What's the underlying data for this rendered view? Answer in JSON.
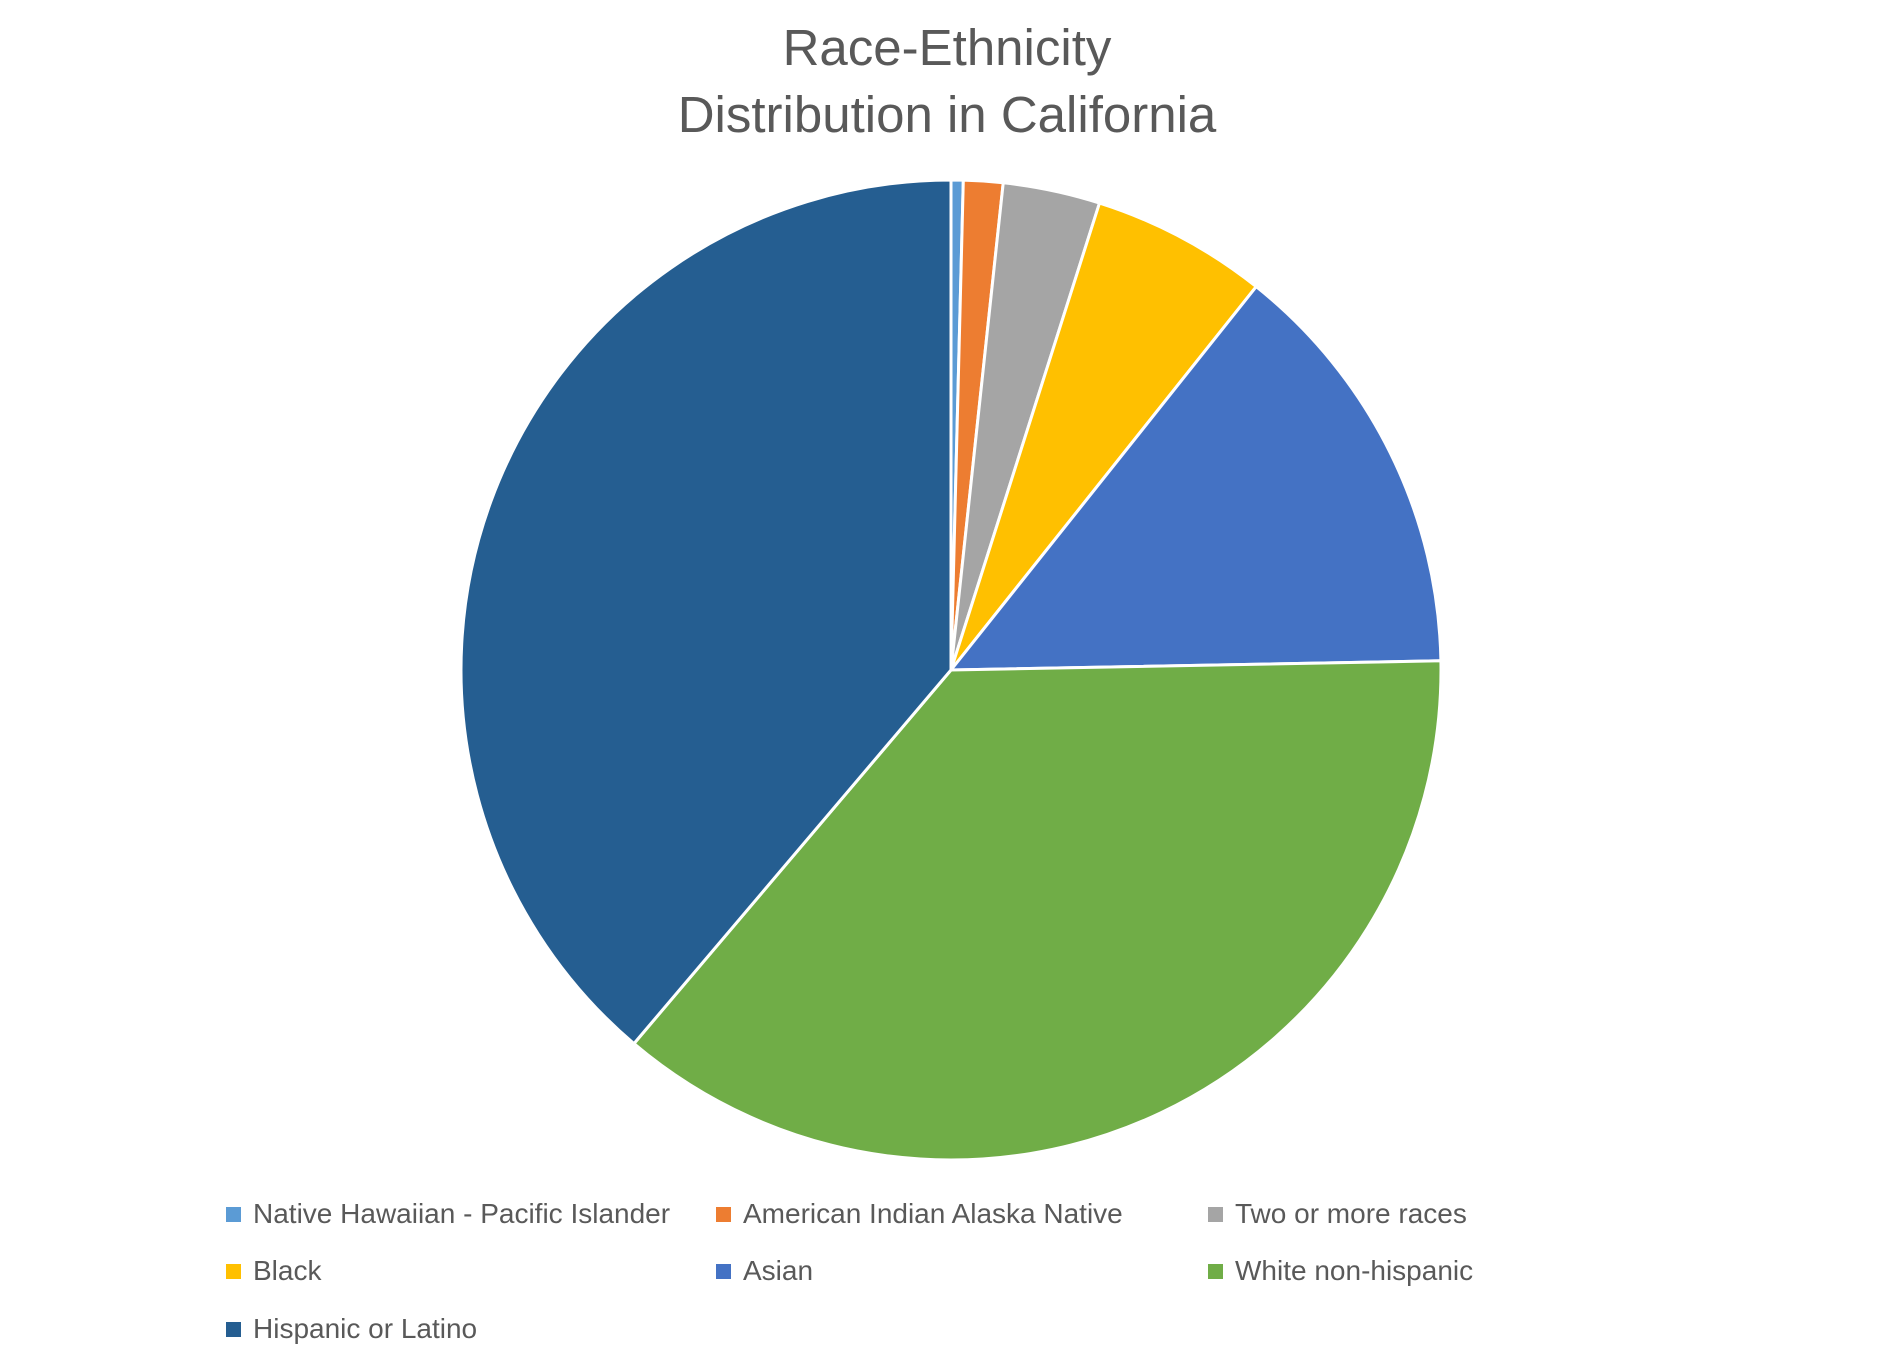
{
  "chart_data": {
    "type": "pie",
    "title_lines": [
      "Race-Ethnicity",
      "Distribution in California"
    ],
    "unit": "percent",
    "slices": [
      {
        "name": "Native Hawaiian - Pacific Islander",
        "value": 0.4,
        "color": "#5B9BD5"
      },
      {
        "name": "American Indian Alaska Native",
        "value": 1.3,
        "color": "#ED7D31"
      },
      {
        "name": "Two or more races",
        "value": 3.2,
        "color": "#A5A5A5"
      },
      {
        "name": "Black",
        "value": 5.8,
        "color": "#FFC000"
      },
      {
        "name": "Asian",
        "value": 14.0,
        "color": "#4472C4"
      },
      {
        "name": "White non-hispanic",
        "value": 36.5,
        "color": "#70AD47"
      },
      {
        "name": "Hispanic or Latino",
        "value": 38.8,
        "color": "#255E91"
      }
    ],
    "start_angle": "12 o'clock",
    "direction": "clockwise",
    "legend_position": "bottom"
  }
}
